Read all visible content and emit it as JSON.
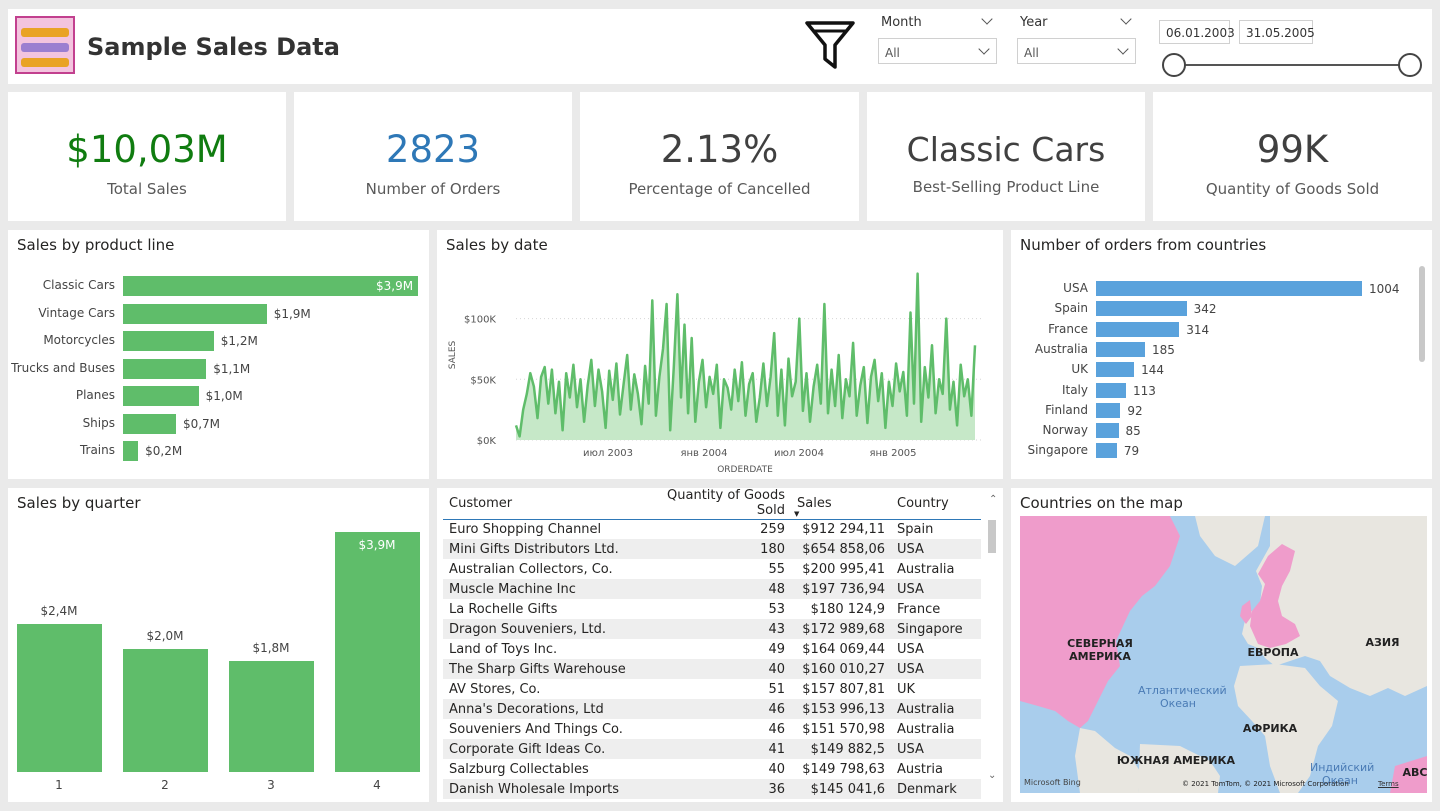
{
  "header": {
    "title": "Sample Sales Data",
    "filters": {
      "month_label": "Month",
      "month_value": "All",
      "year_label": "Year",
      "year_value": "All",
      "date_start": "06.01.2003",
      "date_end": "31.05.2005"
    }
  },
  "kpis": [
    {
      "value": "$10,03M",
      "label": "Total Sales",
      "color": "#107c10"
    },
    {
      "value": "2823",
      "label": "Number of Orders",
      "color": "#2e78b7"
    },
    {
      "value": "2.13%",
      "label": "Percentage of Cancelled",
      "color": "#404040"
    },
    {
      "value": "Classic Cars",
      "label": "Best-Selling Product Line",
      "color": "#404040"
    },
    {
      "value": "99K",
      "label": "Quantity of Goods Sold",
      "color": "#404040"
    }
  ],
  "product_line": {
    "title": "Sales by product line",
    "chart_data": {
      "type": "bar",
      "categories": [
        "Classic Cars",
        "Vintage Cars",
        "Motorcycles",
        "Trucks and Buses",
        "Planes",
        "Ships",
        "Trains"
      ],
      "values": [
        3.9,
        1.9,
        1.2,
        1.1,
        1.0,
        0.7,
        0.2
      ],
      "labels": [
        "$3,9M",
        "$1,9M",
        "$1,2M",
        "$1,1M",
        "$1,0M",
        "$0,7M",
        "$0,2M"
      ]
    }
  },
  "sales_by_date": {
    "title": "Sales by date",
    "chart_data": {
      "type": "area",
      "xlabel": "ORDERDATE",
      "ylabel": "SALES",
      "yticks": [
        "$0K",
        "$50K",
        "$100K"
      ],
      "xticks": [
        "июл 2003",
        "янв 2004",
        "июл 2004",
        "янв 2005"
      ],
      "ylim": [
        0,
        140000
      ],
      "y": [
        12000,
        3000,
        25000,
        38000,
        55000,
        44000,
        18000,
        52000,
        60000,
        30000,
        58000,
        22000,
        48000,
        8000,
        55000,
        35000,
        62000,
        27000,
        50000,
        15000,
        45000,
        66000,
        28000,
        58000,
        40000,
        10000,
        57000,
        33000,
        63000,
        21000,
        46000,
        70000,
        25000,
        54000,
        38000,
        13000,
        61000,
        30000,
        115000,
        20000,
        52000,
        75000,
        112000,
        8000,
        60000,
        120000,
        35000,
        95000,
        22000,
        84000,
        15000,
        48000,
        66000,
        27000,
        52000,
        38000,
        62000,
        10000,
        50000,
        43000,
        25000,
        58000,
        32000,
        64000,
        20000,
        46000,
        55000,
        15000,
        35000,
        63000,
        28000,
        52000,
        88000,
        20000,
        58000,
        12000,
        67000,
        36000,
        48000,
        100000,
        24000,
        55000,
        15000,
        44000,
        62000,
        30000,
        112000,
        22000,
        58000,
        28000,
        70000,
        18000,
        50000,
        36000,
        80000,
        20000,
        45000,
        60000,
        14000,
        52000,
        66000,
        32000,
        55000,
        10000,
        48000,
        28000,
        63000,
        40000,
        56000,
        20000,
        105000,
        30000,
        137000,
        15000,
        60000,
        35000,
        78000,
        22000,
        50000,
        38000,
        100000,
        25000,
        48000,
        12000,
        62000,
        36000,
        50000,
        20000,
        78000
      ]
    }
  },
  "countries": {
    "title": "Number of orders from countries",
    "chart_data": {
      "type": "bar",
      "categories": [
        "USA",
        "Spain",
        "France",
        "Australia",
        "UK",
        "Italy",
        "Finland",
        "Norway",
        "Singapore"
      ],
      "values": [
        1004,
        342,
        314,
        185,
        144,
        113,
        92,
        85,
        79
      ]
    }
  },
  "quarter": {
    "title": "Sales by quarter",
    "chart_data": {
      "type": "bar",
      "categories": [
        "1",
        "2",
        "3",
        "4"
      ],
      "values": [
        2.4,
        2.0,
        1.8,
        3.9
      ],
      "labels": [
        "$2,4M",
        "$2,0M",
        "$1,8M",
        "$3,9M"
      ]
    }
  },
  "table": {
    "headers": [
      "Customer",
      "Quantity of Goods Sold",
      "Sales",
      "Country"
    ],
    "rows": [
      [
        "Euro Shopping Channel",
        "259",
        "$912 294,11",
        "Spain"
      ],
      [
        "Mini Gifts Distributors Ltd.",
        "180",
        "$654 858,06",
        "USA"
      ],
      [
        "Australian Collectors, Co.",
        "55",
        "$200 995,41",
        "Australia"
      ],
      [
        "Muscle Machine Inc",
        "48",
        "$197 736,94",
        "USA"
      ],
      [
        "La Rochelle Gifts",
        "53",
        "$180 124,9",
        "France"
      ],
      [
        "Dragon Souveniers, Ltd.",
        "43",
        "$172 989,68",
        "Singapore"
      ],
      [
        "Land of Toys Inc.",
        "49",
        "$164 069,44",
        "USA"
      ],
      [
        "The Sharp Gifts Warehouse",
        "40",
        "$160 010,27",
        "USA"
      ],
      [
        "AV Stores, Co.",
        "51",
        "$157 807,81",
        "UK"
      ],
      [
        "Anna's Decorations, Ltd",
        "46",
        "$153 996,13",
        "Australia"
      ],
      [
        "Souveniers And Things Co.",
        "46",
        "$151 570,98",
        "Australia"
      ],
      [
        "Corporate Gift Ideas Co.",
        "41",
        "$149 882,5",
        "USA"
      ],
      [
        "Salzburg Collectables",
        "40",
        "$149 798,63",
        "Austria"
      ],
      [
        "Danish Wholesale Imports",
        "36",
        "$145 041,6",
        "Denmark"
      ]
    ]
  },
  "map": {
    "title": "Countries on the map",
    "labels": {
      "na": "СЕВЕРНАЯ АМЕРИКА",
      "eu": "ЕВРОПА",
      "asia": "АЗИЯ",
      "atlantic": "Атлантический Океан",
      "africa": "АФРИКА",
      "sa": "ЮЖНАЯ АМЕРИКА",
      "indian": "Индийский Океан",
      "aus": "АВС"
    },
    "brand": "Microsoft Bing",
    "copyright": "© 2021 TomTom, © 2021 Microsoft Corporation",
    "terms": "Terms"
  }
}
